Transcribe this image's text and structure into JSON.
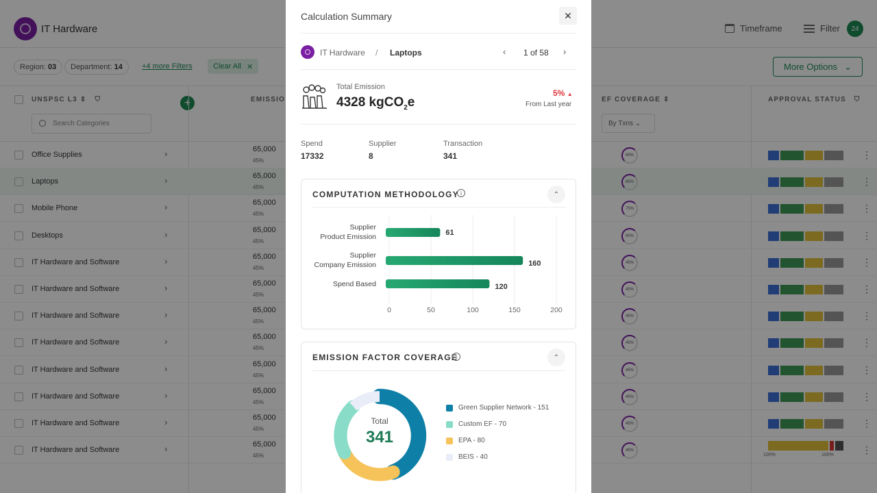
{
  "app": {
    "title": "IT Hardware",
    "timeframe_label": "Timeframe",
    "filter_label": "Filter",
    "filter_count": "24",
    "filters": {
      "region_label": "Region:",
      "region_value": "03",
      "department_label": "Department:",
      "department_value": "14",
      "more_filters": "+4 more Filters",
      "clear_all": "Clear All"
    },
    "more_options": "More Options",
    "columns": {
      "unspsc": "UNSPSC L3",
      "emission": "EMISSIO",
      "ef_coverage": "EF COVERAGE",
      "approval": "APPROVAL STATUS"
    },
    "search_placeholder": "Search Categories",
    "by_txns": "By Txns",
    "rows": [
      {
        "name": "Office Supplies",
        "value": "65,000",
        "pct": "45%",
        "ring": "65%"
      },
      {
        "name": "Laptops",
        "value": "65,000",
        "pct": "45%",
        "ring": "65%"
      },
      {
        "name": "Mobile Phone",
        "value": "65,000",
        "pct": "45%",
        "ring": "75%"
      },
      {
        "name": "Desktops",
        "value": "65,000",
        "pct": "45%",
        "ring": "60%"
      },
      {
        "name": "IT Hardware and Software",
        "value": "65,000",
        "pct": "45%",
        "ring": "45%"
      },
      {
        "name": "IT Hardware and Software",
        "value": "65,000",
        "pct": "45%",
        "ring": "45%"
      },
      {
        "name": "IT Hardware and Software",
        "value": "65,000",
        "pct": "45%",
        "ring": "45%"
      },
      {
        "name": "IT Hardware and Software",
        "value": "65,000",
        "pct": "45%",
        "ring": "45%"
      },
      {
        "name": "IT Hardware and Software",
        "value": "65,000",
        "pct": "45%",
        "ring": "45%"
      },
      {
        "name": "IT Hardware and Software",
        "value": "65,000",
        "pct": "45%",
        "ring": "45%"
      },
      {
        "name": "IT Hardware and Software",
        "value": "65,000",
        "pct": "45%",
        "ring": "45%"
      },
      {
        "name": "IT Hardware and Software",
        "value": "65,000",
        "pct": "45%",
        "ring": "45%"
      }
    ],
    "last_row_labels": [
      "100%",
      "100%"
    ]
  },
  "modal": {
    "title": "Calculation Summary",
    "breadcrumb": {
      "parent": "IT Hardware",
      "separator": "/",
      "current": "Laptops"
    },
    "pager": "1 of 58",
    "total_emission_label": "Total Emission",
    "total_emission_value": "4328 kgCO",
    "total_emission_sub": "2",
    "total_emission_suffix": "e",
    "change_pct": "5%",
    "change_label": "From Last year",
    "stats": [
      {
        "label": "Spend",
        "value": "17332"
      },
      {
        "label": "Supplier",
        "value": "8"
      },
      {
        "label": "Transaction",
        "value": "341"
      }
    ],
    "methodology_title": "COMPUTATION METHODOLOGY",
    "coverage_title": "EMISSION FACTOR COVERAGE",
    "donut_total_label": "Total",
    "donut_total_value": "341"
  },
  "colors": {
    "brand_green": "#1d8a55",
    "brand_purple": "#7a1fa2",
    "bar_green": "#1f9a67",
    "donut_dark": "#0e7fa6",
    "donut_mint": "#88dcc8",
    "donut_yellow": "#f6c35a",
    "donut_light": "#e9edf7",
    "alert_red": "#e0393e"
  },
  "chart_data": [
    {
      "type": "bar",
      "orientation": "horizontal",
      "title": "COMPUTATION METHODOLOGY",
      "categories": [
        "Supplier Product Emission",
        "Supplier Company Emission",
        "Spend Based"
      ],
      "category_lines": [
        [
          "Supplier",
          "Product Emission"
        ],
        [
          "Supplier",
          "Company Emission"
        ],
        [
          "Spend Based"
        ]
      ],
      "values": [
        61,
        160,
        120
      ],
      "xlim": [
        0,
        200
      ],
      "xticks": [
        0,
        50,
        100,
        150,
        200
      ]
    },
    {
      "type": "pie",
      "title": "EMISSION FACTOR COVERAGE",
      "categories": [
        "Green Supplier Network",
        "Custom EF",
        "EPA",
        "BEIS"
      ],
      "values": [
        151,
        70,
        80,
        40
      ],
      "legend": [
        "Green Supplier Network - 151",
        "Custom EF - 70",
        "EPA - 80",
        "BEIS - 40"
      ],
      "total": 341
    }
  ]
}
